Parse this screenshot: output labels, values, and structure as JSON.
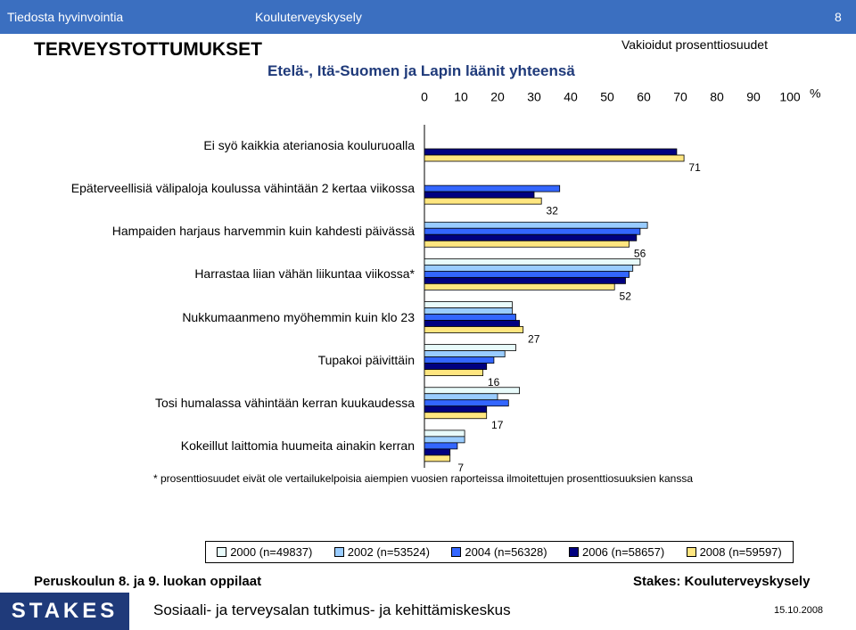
{
  "header": {
    "left": "Tiedosta hyvinvointia",
    "center": "Kouluterveyskysely",
    "page": "8"
  },
  "footer": {
    "group": "Peruskoulun 8. ja 9. luokan oppilaat",
    "source": "Stakes: Kouluterveyskysely",
    "logo": "STAKES",
    "org": "Sosiaali- ja terveysalan tutkimus- ja kehittämiskeskus",
    "date": "15.10.2008"
  },
  "chart_data": {
    "type": "bar",
    "orientation": "horizontal",
    "title": "TERVEYSTOTTUMUKSET",
    "subtitle": "Etelä-, Itä-Suomen ja Lapin läänit yhteensä",
    "note": "Vakioidut prosenttiosuudet",
    "x_unit": "%",
    "footnote": "* prosenttiosuudet eivät ole vertailukelpoisia aiempien vuosien raporteissa ilmoitettujen prosenttiosuuksien kanssa",
    "categories": [
      "Ei syö kaikkia aterianosia kouluruoalla",
      "Epäterveellisiä välipaloja koulussa vähintään 2 kertaa viikossa",
      "Hampaiden harjaus harvemmin kuin kahdesti päivässä",
      "Harrastaa liian vähän liikuntaa viikossa*",
      "Nukkumaanmeno myöhemmin kuin klo 23",
      "Tupakoi päivittäin",
      "Tosi humalassa vähintään kerran kuukaudessa",
      "Kokeillut laittomia huumeita ainakin kerran"
    ],
    "series": [
      {
        "name": "2000 (n=49837)",
        "color": "#e8fbfb",
        "values": [
          null,
          null,
          null,
          59,
          24,
          25,
          26,
          11
        ]
      },
      {
        "name": "2002 (n=53524)",
        "color": "#99ccff",
        "values": [
          null,
          null,
          61,
          57,
          24,
          22,
          20,
          11
        ]
      },
      {
        "name": "2004 (n=56328)",
        "color": "#3366ff",
        "values": [
          null,
          37,
          59,
          56,
          25,
          19,
          23,
          9
        ]
      },
      {
        "name": "2006 (n=58657)",
        "color": "#000080",
        "values": [
          69,
          30,
          58,
          55,
          26,
          17,
          17,
          7
        ]
      },
      {
        "name": "2008 (n=59597)",
        "color": "#ffe680",
        "values": [
          71,
          32,
          56,
          52,
          27,
          16,
          17,
          7
        ],
        "show_labels": true
      }
    ],
    "xlim": [
      0,
      100
    ],
    "xticks": [
      0,
      10,
      20,
      30,
      40,
      50,
      60,
      70,
      80,
      90,
      100
    ],
    "grid": false,
    "legend": "bottom"
  }
}
